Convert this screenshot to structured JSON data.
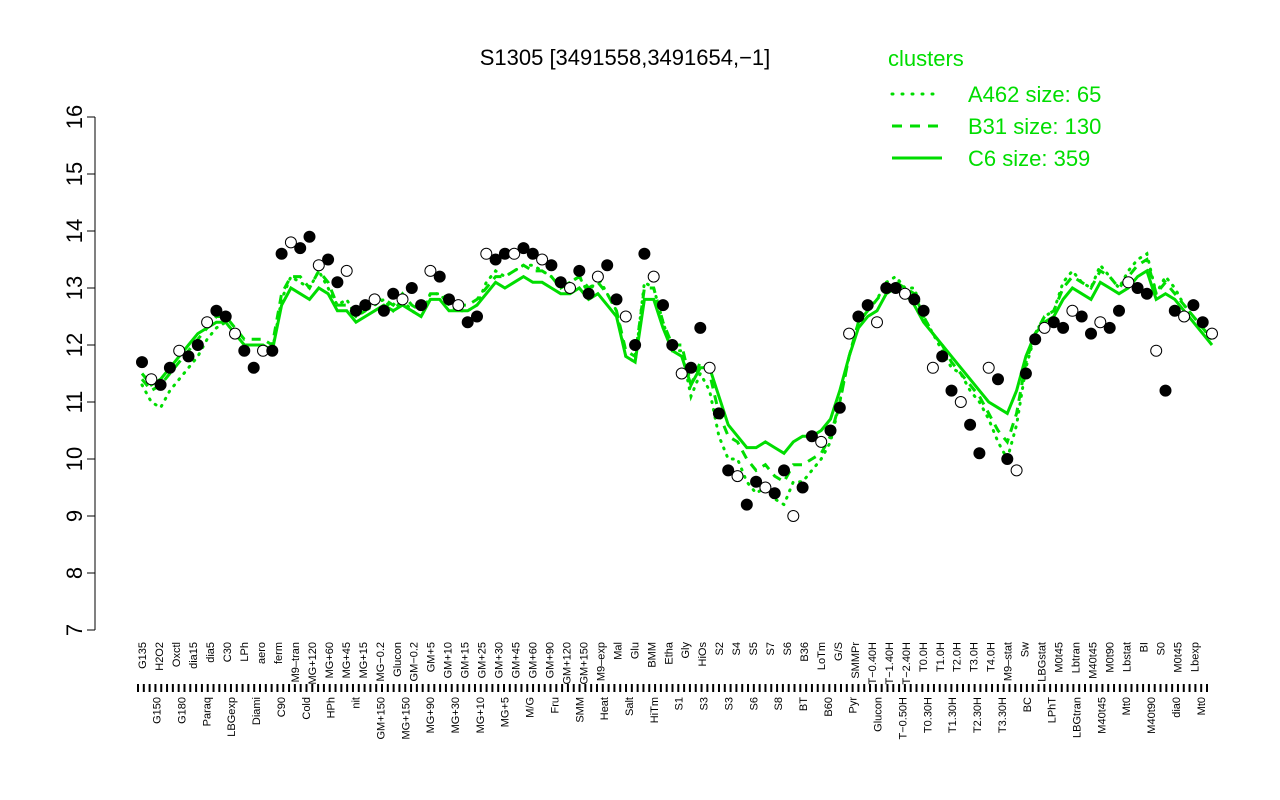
{
  "chart_data": {
    "type": "line",
    "title": "S1305 [3491558,3491654,−1]",
    "xlabel": "",
    "ylabel": "",
    "ylim": [
      7,
      16
    ],
    "y_ticks": [
      7,
      8,
      9,
      10,
      11,
      12,
      13,
      14,
      15,
      16
    ],
    "grid": false,
    "legend": {
      "title": "clusters",
      "placement": "top-right",
      "color": "#00dd00",
      "entries": [
        {
          "label": "A462 size: 65",
          "style": "dotted"
        },
        {
          "label": "B31 size: 130",
          "style": "dashed"
        },
        {
          "label": "C6 size: 359",
          "style": "solid"
        }
      ]
    },
    "x_tick_labels_upper": [
      "G135",
      "H2O2",
      "Oxctl",
      "dia15",
      "dia5",
      "C30",
      "LPh",
      "aero",
      "ferm",
      "M9–tran",
      "MG+120",
      "MG+60",
      "MG+45",
      "MG+15",
      "MG−0.2",
      "Glucon",
      "GM−0.2",
      "GM+5",
      "GM+10",
      "GM+15",
      "GM+25",
      "GM+30",
      "GM+45",
      "GM+60",
      "GM+90",
      "GM+120",
      "GM+150",
      "M9–exp",
      "Mal",
      "Glu",
      "BMM",
      "Etha",
      "Gly",
      "HiOs",
      "S2",
      "S4",
      "S5",
      "S7",
      "S6",
      "B36",
      "LoTm",
      "G/S",
      "SMMPr",
      "T−0.40H",
      "T−1.40H",
      "T−2.40H",
      "T0.0H",
      "T1.0H",
      "T2.0H",
      "T3.0H",
      "T4.0H",
      "M9–stat",
      "Sw",
      "LBGstat",
      "M0t45",
      "Lbtran",
      "M40t45",
      "M0t90",
      "Lbstat",
      "BI",
      "S0",
      "M0t45",
      "Lbexp"
    ],
    "x_tick_labels_lower": [
      "G150",
      "G180",
      "Paraq",
      "LBGexp",
      "Diami",
      "C90",
      "Cold",
      "HPh",
      "nit",
      "GM+150",
      "MG+150",
      "MG+90",
      "MG+30",
      "MG+10",
      "MG+5",
      "M/G",
      "Fru",
      "SMM",
      "Heat",
      "Salt",
      "HiTm",
      "S1",
      "S3",
      "S3",
      "S6",
      "S8",
      "BT",
      "B60",
      "Pyr",
      "Glucon",
      "T−0.50H",
      "T0.30H",
      "T1.30H",
      "T2.30H",
      "T3.30H",
      "BC",
      "LPhT",
      "LBGtran",
      "M40t45",
      "Mt0",
      "M40t90",
      "dia0",
      "Mt0"
    ],
    "series": [
      {
        "name": "A462 size: 65",
        "style": "dotted",
        "color": "#00dd00",
        "values": [
          11.3,
          11.0,
          10.9,
          11.2,
          11.4,
          11.6,
          11.8,
          12.1,
          12.3,
          12.4,
          12.2,
          12.0,
          12.0,
          12.0,
          11.9,
          12.8,
          13.2,
          13.1,
          13.0,
          13.3,
          13.0,
          12.7,
          12.8,
          12.5,
          12.6,
          12.7,
          12.8,
          12.6,
          12.8,
          12.6,
          12.5,
          12.9,
          12.9,
          12.7,
          12.6,
          12.6,
          12.7,
          13.1,
          13.3,
          13.2,
          13.3,
          13.4,
          13.4,
          13.3,
          13.2,
          13.0,
          13.1,
          13.2,
          12.9,
          13.2,
          12.9,
          12.6,
          11.8,
          11.7,
          13.1,
          13.0,
          12.4,
          11.9,
          11.9,
          11.1,
          11.5,
          11.2,
          10.4,
          10.0,
          10.0,
          9.6,
          9.4,
          9.5,
          9.3,
          9.2,
          9.6,
          9.6,
          9.8,
          10.0,
          10.3,
          11.0,
          11.8,
          12.4,
          12.6,
          12.8,
          13.1,
          13.2,
          13.0,
          13.0,
          12.5,
          12.2,
          11.9,
          11.6,
          11.5,
          11.2,
          11.0,
          10.7,
          10.3,
          10.0,
          10.6,
          11.6,
          12.2,
          12.5,
          12.6,
          13.1,
          13.3,
          13.1,
          13.0,
          13.4,
          13.2,
          13.0,
          13.3,
          13.5,
          13.6,
          12.9,
          13.2,
          13.0,
          12.7,
          12.5,
          12.3,
          12.1
        ]
      },
      {
        "name": "B31 size: 130",
        "style": "dashed",
        "color": "#00dd00",
        "values": [
          11.4,
          11.2,
          11.3,
          11.5,
          11.7,
          11.9,
          12.1,
          12.3,
          12.5,
          12.5,
          12.3,
          12.1,
          12.1,
          12.1,
          12.0,
          12.9,
          13.2,
          13.2,
          13.0,
          13.3,
          13.1,
          12.7,
          12.7,
          12.5,
          12.6,
          12.8,
          12.8,
          12.7,
          12.9,
          12.7,
          12.6,
          12.9,
          12.9,
          12.8,
          12.7,
          12.7,
          12.8,
          13.0,
          13.2,
          13.2,
          13.3,
          13.4,
          13.3,
          13.3,
          13.2,
          13.0,
          13.1,
          13.2,
          13.0,
          13.1,
          12.9,
          12.6,
          11.9,
          11.8,
          13.0,
          13.0,
          12.4,
          12.0,
          12.0,
          11.3,
          11.7,
          11.5,
          10.8,
          10.4,
          10.3,
          10.0,
          9.8,
          9.9,
          9.7,
          9.6,
          9.9,
          9.9,
          10.0,
          10.1,
          10.4,
          11.0,
          11.8,
          12.4,
          12.6,
          12.8,
          13.0,
          13.1,
          13.0,
          12.9,
          12.5,
          12.2,
          12.0,
          11.7,
          11.5,
          11.3,
          11.1,
          10.8,
          10.5,
          10.3,
          10.8,
          11.7,
          12.2,
          12.5,
          12.6,
          13.0,
          13.2,
          13.1,
          13.0,
          13.3,
          13.2,
          13.0,
          13.2,
          13.4,
          13.5,
          12.9,
          13.1,
          12.9,
          12.7,
          12.5,
          12.3,
          12.1
        ]
      },
      {
        "name": "C6 size: 359",
        "style": "solid",
        "color": "#00dd00",
        "values": [
          11.5,
          11.3,
          11.4,
          11.6,
          11.8,
          12.0,
          12.2,
          12.3,
          12.4,
          12.4,
          12.2,
          12.0,
          12.0,
          12.0,
          11.9,
          12.7,
          13.0,
          12.9,
          12.8,
          13.0,
          12.9,
          12.6,
          12.6,
          12.4,
          12.5,
          12.6,
          12.7,
          12.6,
          12.7,
          12.6,
          12.5,
          12.8,
          12.8,
          12.6,
          12.6,
          12.6,
          12.7,
          12.9,
          13.1,
          13.0,
          13.1,
          13.2,
          13.1,
          13.1,
          13.0,
          12.9,
          12.9,
          13.0,
          12.8,
          12.9,
          12.7,
          12.5,
          11.8,
          11.7,
          12.8,
          12.8,
          12.3,
          11.9,
          11.8,
          11.3,
          11.6,
          11.6,
          11.1,
          10.6,
          10.4,
          10.2,
          10.2,
          10.3,
          10.2,
          10.1,
          10.3,
          10.4,
          10.4,
          10.5,
          10.7,
          11.2,
          11.8,
          12.3,
          12.5,
          12.6,
          12.9,
          13.0,
          12.9,
          12.7,
          12.4,
          12.2,
          12.0,
          11.8,
          11.6,
          11.4,
          11.2,
          11.0,
          10.9,
          10.8,
          11.2,
          11.8,
          12.2,
          12.4,
          12.5,
          12.8,
          13.0,
          12.9,
          12.8,
          13.1,
          13.0,
          12.9,
          13.0,
          13.2,
          13.3,
          12.8,
          12.9,
          12.8,
          12.6,
          12.4,
          12.2,
          12.0
        ]
      },
      {
        "name": "",
        "style": "points",
        "color": "#000000",
        "values": [
          11.7,
          11.4,
          11.3,
          11.6,
          11.9,
          11.8,
          12.0,
          12.4,
          12.6,
          12.5,
          12.2,
          11.9,
          11.6,
          11.9,
          11.9,
          13.6,
          13.8,
          13.7,
          13.9,
          13.4,
          13.5,
          13.1,
          13.3,
          12.6,
          12.7,
          12.8,
          12.6,
          12.9,
          12.8,
          13.0,
          12.7,
          13.3,
          13.2,
          12.8,
          12.7,
          12.4,
          12.5,
          13.6,
          13.5,
          13.6,
          13.6,
          13.7,
          13.6,
          13.5,
          13.4,
          13.1,
          13.0,
          13.3,
          12.9,
          13.2,
          13.4,
          12.8,
          12.5,
          12.0,
          13.6,
          13.2,
          12.7,
          12.0,
          11.5,
          11.6,
          12.3,
          11.6,
          10.8,
          9.8,
          9.7,
          9.2,
          9.6,
          9.5,
          9.4,
          9.8,
          9.0,
          9.5,
          10.4,
          10.3,
          10.5,
          10.9,
          12.2,
          12.5,
          12.7,
          12.4,
          13.0,
          13.0,
          12.9,
          12.8,
          12.6,
          11.6,
          11.8,
          11.2,
          11.0,
          10.6,
          10.1,
          11.6,
          11.4,
          10.0,
          9.8,
          11.5,
          12.1,
          12.3,
          12.4,
          12.3,
          12.6,
          12.5,
          12.2,
          12.4,
          12.3,
          12.6,
          13.1,
          13.0,
          12.9,
          11.9,
          11.2,
          12.6,
          12.5,
          12.7,
          12.4,
          12.2
        ]
      }
    ]
  }
}
